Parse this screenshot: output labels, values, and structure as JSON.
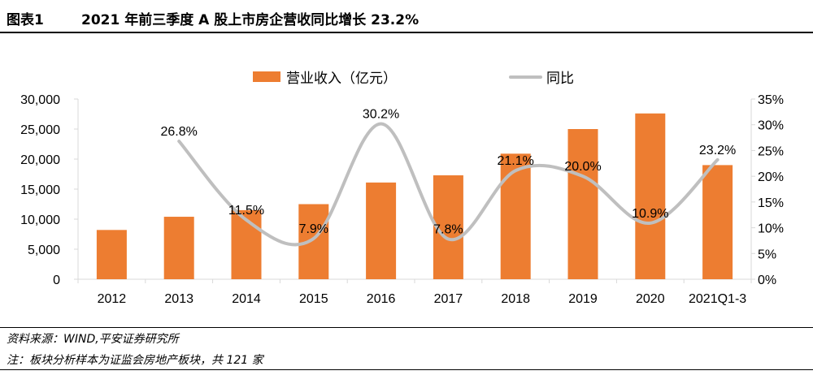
{
  "header": {
    "figure_label": "图表1",
    "title": "2021 年前三季度 A 股上市房企营收同比增长 23.2%"
  },
  "footer": {
    "source": "资料来源：WIND,平安证券研究所",
    "note": "注：板块分析样本为证监会房地产板块，共 121 家"
  },
  "colors": {
    "bar": "#ED7D31",
    "line": "#BFBFBF",
    "axis": "#D9D9D9"
  },
  "chart_data": {
    "type": "bar",
    "title": "2021 年前三季度 A 股上市房企营收同比增长 23.2%",
    "categories": [
      "2012",
      "2013",
      "2014",
      "2015",
      "2016",
      "2017",
      "2018",
      "2019",
      "2020",
      "2021Q1-3"
    ],
    "series": [
      {
        "name": "营业收入（亿元）",
        "type": "bar",
        "axis": "left",
        "values": [
          8200,
          10400,
          11500,
          12500,
          16100,
          17300,
          20900,
          25000,
          27600,
          19000
        ]
      },
      {
        "name": "同比",
        "type": "line",
        "axis": "right",
        "values": [
          null,
          26.8,
          11.5,
          7.9,
          30.2,
          7.8,
          21.1,
          20.0,
          10.9,
          23.2
        ],
        "labels": [
          "",
          "26.8%",
          "11.5%",
          "7.9%",
          "30.2%",
          "7.8%",
          "21.1%",
          "20.0%",
          "10.9%",
          "23.2%"
        ]
      }
    ],
    "left_axis": {
      "ylim": [
        0,
        30000
      ],
      "tick_labels": [
        "0",
        "5,000",
        "10,000",
        "15,000",
        "20,000",
        "25,000",
        "30,000"
      ]
    },
    "right_axis": {
      "ylim": [
        0,
        35
      ],
      "tick_labels": [
        "0%",
        "5%",
        "10%",
        "15%",
        "20%",
        "25%",
        "30%",
        "35%"
      ]
    },
    "grid": false,
    "legend_position": "top-center"
  }
}
